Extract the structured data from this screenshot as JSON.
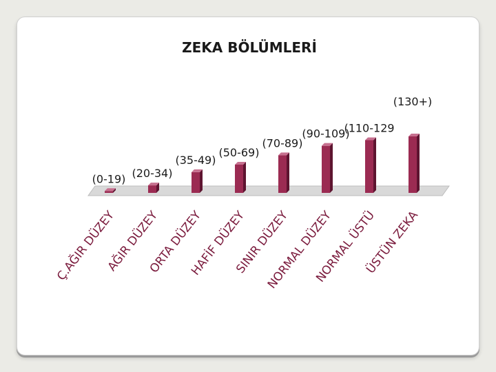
{
  "chart_data": {
    "type": "bar",
    "title": "ZEKA BÖLÜMLERİ",
    "categories": [
      "Ç.AĞIR DÜZEY",
      "AĞIR DÜZEY",
      "ORTA DÜZEY",
      "HAFİF DÜZEY",
      "SINIR DÜZEY",
      "NORMAL DÜZEY",
      "NORMAL ÜSTÜ",
      "ÜSTÜN ZEKA"
    ],
    "data_labels": [
      "(0-19)",
      "(20-34)",
      "(35-49)",
      "(50-69)",
      "(70-89)",
      "(90-109)",
      "(110-129",
      "(130+)"
    ],
    "values": [
      1,
      4,
      11,
      15,
      20,
      25,
      28,
      30
    ],
    "ylim": [
      0,
      30
    ],
    "grid": false,
    "legend": "none",
    "bar_color": "#9b2b52",
    "bar_side_color": "#5e1430",
    "bar_top_color": "#c7708f",
    "floor_color": "#d9d9d9"
  }
}
